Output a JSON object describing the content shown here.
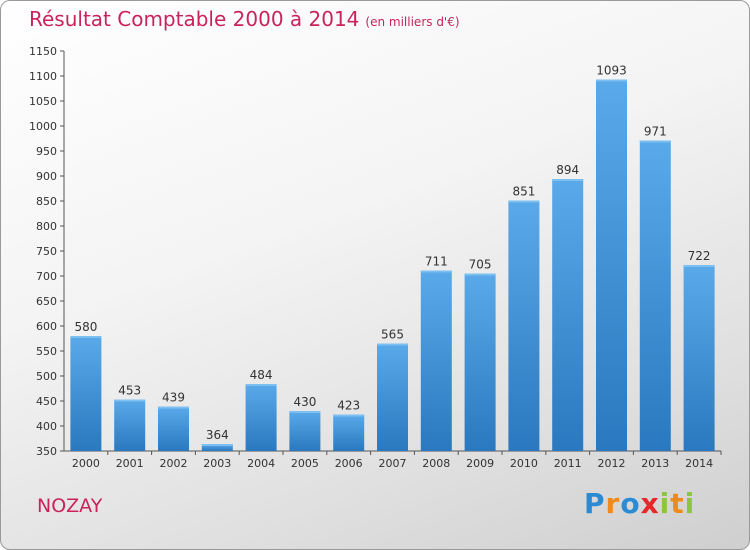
{
  "chart_data": {
    "type": "bar",
    "title": "Résultat Comptable 2000 à 2014",
    "subtitle": "(en milliers d'€)",
    "categories": [
      "2000",
      "2001",
      "2002",
      "2003",
      "2004",
      "2005",
      "2006",
      "2007",
      "2008",
      "2009",
      "2010",
      "2011",
      "2012",
      "2013",
      "2014"
    ],
    "values": [
      580,
      453,
      439,
      364,
      484,
      430,
      423,
      565,
      711,
      705,
      851,
      894,
      1093,
      971,
      722
    ],
    "ylim": [
      350,
      1150
    ],
    "yticks": [
      350,
      400,
      450,
      500,
      550,
      600,
      650,
      700,
      750,
      800,
      850,
      900,
      950,
      1000,
      1050,
      1100,
      1150
    ],
    "grid": false,
    "bar_color": "#3b8fd6"
  },
  "place_name": "NOZAY",
  "logo": {
    "letters": [
      "P",
      "r",
      "o",
      "x",
      "i",
      "t",
      "i"
    ],
    "colors": [
      "#2a8bd4",
      "#f08a1c",
      "#2a8bd4",
      "#e8262a",
      "#8cc63f",
      "#f08a1c",
      "#8cc63f"
    ]
  }
}
